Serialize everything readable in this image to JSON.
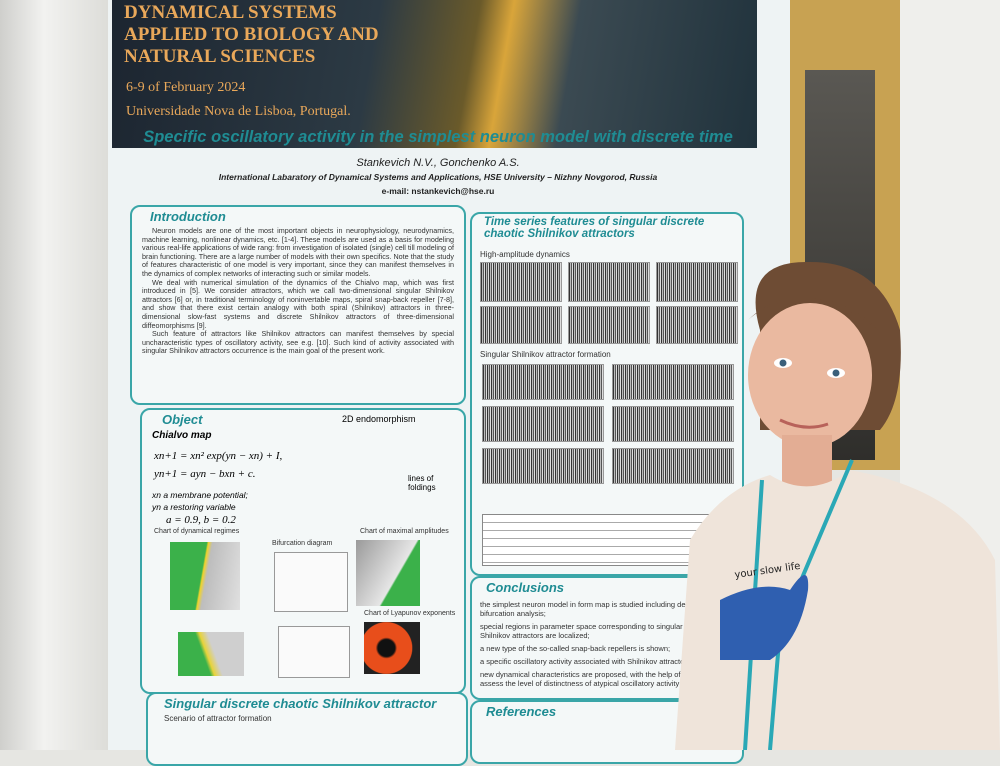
{
  "banner": {
    "title_lines": [
      "DYNAMICAL SYSTEMS",
      "APPLIED TO BIOLOGY AND",
      "NATURAL SCIENCES"
    ],
    "dates": "6-9 of February 2024",
    "venue": "Universidade Nova de Lisboa, Portugal."
  },
  "poster": {
    "title": "Specific oscillatory activity in the simplest neuron model with discrete time",
    "authors": "Stankevich N.V., Gonchenko A.S.",
    "affiliation": "International Labaratory of Dynamical Systems and Applications, HSE University – Nizhny Novgorod, Russia",
    "email": "e-mail: nstankevich@hse.ru",
    "introduction": {
      "heading": "Introduction",
      "paragraphs": [
        "Neuron models are one of the most important objects in neurophysiology, neurodynamics, machine learning, nonlinear dynamics, etc. [1-4]. These models are used as a basis for modeling various real-life applications of wide rang: from investigation of isolated (single) cell till modeling of brain functioning. There are a large number of models with their own specifics. Note that the study of features characteristic of one model is very important, since they can manifest themselves in the dynamics of complex networks of interacting such or similar models.",
        "We deal with numerical simulation of the dynamics of the Chialvo map, which was first introduced in [5]. We consider attractors, which we call two-dimensional singular Shilnikov attractors [6] or, in traditional terminology of noninvertable maps, spiral snap-back repeller [7-8], and show that there exist certain analogy with both spiral (Shilnikov) attractors in three-dimensional slow-fast systems and discrete Shilnikov attractors of three-dimensional diffeomorphisms [9].",
        "Such feature of attractors like Shilnikov attractors can manifest themselves by special uncharacteristic types of oscillatory activity, see e.g. [10]. Such kind of activity associated with singular Shilnikov attractors occurrence is the main goal of the present work."
      ]
    },
    "object": {
      "heading": "Object",
      "map_name": "Chialvo map",
      "endomorphism": "2D endomorphism",
      "equations": [
        "xn+1 = xn² exp(yn − xn) + I,",
        "yn+1 = ayn − bxn + c."
      ],
      "variables": [
        "xn a membrane potential;",
        "yn a restoring variable"
      ],
      "params": "a = 0.9, b = 0.2",
      "foldings": "lines of foldings",
      "charts": [
        "Chart of dynamical regimes",
        "Bifurcation diagram",
        "Chart of maximal amplitudes",
        "Chart of Lyapunov exponents"
      ]
    },
    "singular": {
      "heading": "Singular discrete chaotic Shilnikov attractor",
      "subheading": "Scenario of attractor formation"
    },
    "time_series": {
      "heading": "Time series features of singular discrete chaotic Shilnikov attractors",
      "panels": [
        "High-amplitude dynamics",
        "Singular Shilnikov attractor formation"
      ]
    },
    "conclusions": {
      "heading": "Conclusions",
      "items": [
        "the simplest neuron model in form map is studied including detailed bifurcation analysis;",
        "special regions in parameter space corresponding to singular discrete Shilnikov attractors are localized;",
        "a new type of the so-called snap-back repellers is shown;",
        "a specific oscillatory activity associated with Shilnikov attractors",
        "new dynamical characteristics are proposed, with the help of which to assess the level of distinctness of atypical oscillatory activity"
      ]
    },
    "references": {
      "heading": "References"
    }
  },
  "tshirt": {
    "text": "your slow life"
  }
}
